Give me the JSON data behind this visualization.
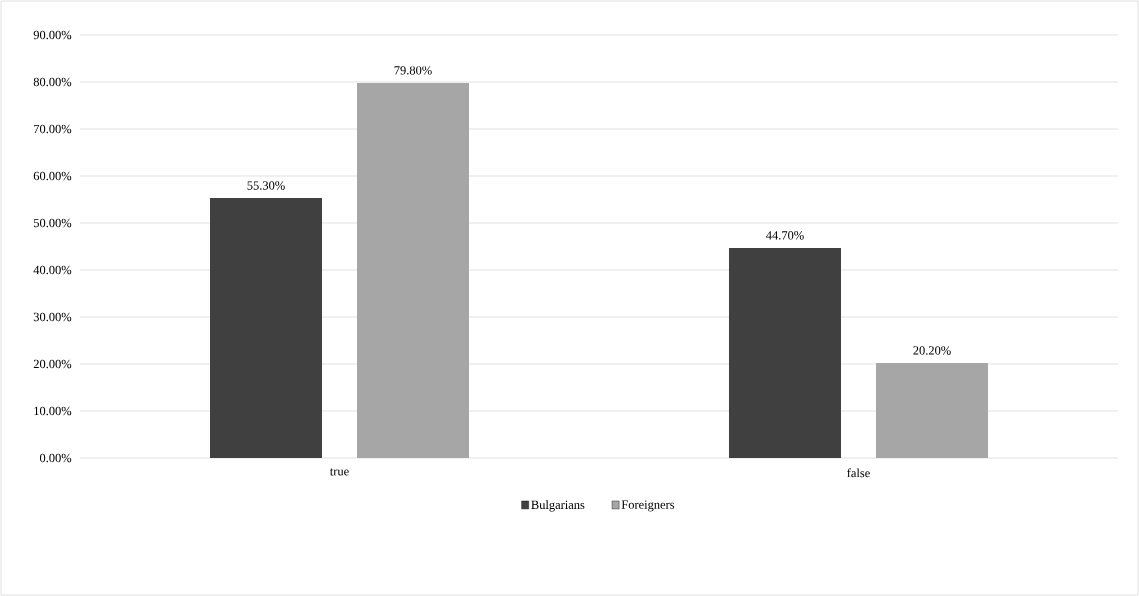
{
  "chart_data": {
    "type": "bar",
    "categories": [
      "true",
      "false"
    ],
    "series": [
      {
        "name": "Bulgarians",
        "color": "#404040",
        "values": [
          55.3,
          44.7
        ],
        "value_labels": [
          "55.30%",
          "44.70%"
        ]
      },
      {
        "name": "Foreigners",
        "color": "#a6a6a6",
        "values": [
          79.8,
          20.2
        ],
        "value_labels": [
          "79.80%",
          "20.20%"
        ]
      }
    ],
    "ylim": [
      0,
      90
    ],
    "yticks": [
      {
        "value": 0,
        "label": "0.00%"
      },
      {
        "value": 10,
        "label": "10.00%"
      },
      {
        "value": 20,
        "label": "20.00%"
      },
      {
        "value": 30,
        "label": "30.00%"
      },
      {
        "value": 40,
        "label": "40.00%"
      },
      {
        "value": 50,
        "label": "50.00%"
      },
      {
        "value": 60,
        "label": "60.00%"
      },
      {
        "value": 70,
        "label": "70.00%"
      },
      {
        "value": 80,
        "label": "80.00%"
      },
      {
        "value": 90,
        "label": "90.00%"
      }
    ],
    "grid": "y",
    "legend": "bottom"
  }
}
